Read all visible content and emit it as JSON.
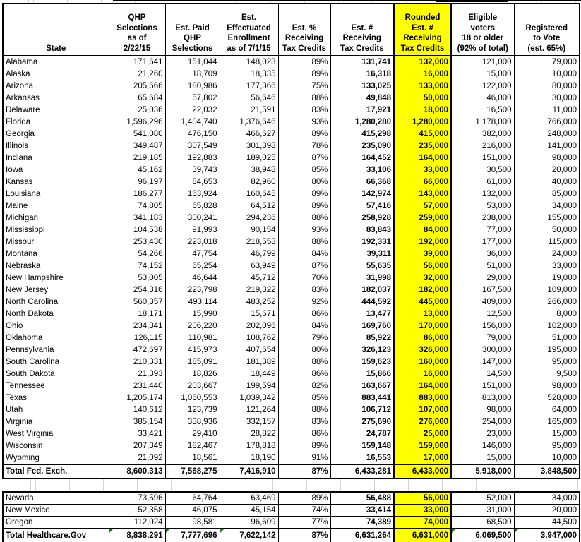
{
  "meta": {
    "highlight_color": "#ffff00",
    "flag_color": "#1e7e1e"
  },
  "table": {
    "columns": [
      {
        "key": "state",
        "label": "State"
      },
      {
        "key": "qhp-selections",
        "label": "QHP\nSelections\nas of\n2/22/15"
      },
      {
        "key": "est-paid-qhp",
        "label": "Est. Paid\nQHP\nSelections"
      },
      {
        "key": "est-effectuated",
        "label": "Est.\nEffectuated\nEnrollment\nas of 7/1/15"
      },
      {
        "key": "est-pct-tax-credits",
        "label": "Est. %\nReceiving\nTax Credits"
      },
      {
        "key": "est-num-tax-credits",
        "label": "Est. #\nReceiving\nTax Credits"
      },
      {
        "key": "rounded-est-tax-credits",
        "label": "Rounded\nEst. #\nReceiving\nTax Credits",
        "highlighted": true
      },
      {
        "key": "eligible-voters",
        "label": "Eligible\nvoters\n18 or older\n(92% of total)"
      },
      {
        "key": "registered-to-vote",
        "label": "Registered\nto Vote\n(est. 65%)"
      }
    ],
    "federal_rows": [
      [
        "Alabama",
        "171,641",
        "151,044",
        "148,023",
        "89%",
        "131,741",
        "132,000",
        "121,000",
        "79,000"
      ],
      [
        "Alaska",
        "21,260",
        "18,709",
        "18,335",
        "89%",
        "16,318",
        "16,000",
        "15,000",
        "10,000"
      ],
      [
        "Arizona",
        "205,666",
        "180,986",
        "177,366",
        "75%",
        "133,025",
        "133,000",
        "122,000",
        "80,000"
      ],
      [
        "Arkansas",
        "65,684",
        "57,802",
        "56,646",
        "88%",
        "49,848",
        "50,000",
        "46,000",
        "30,000"
      ],
      [
        "Delaware",
        "25,036",
        "22,032",
        "21,591",
        "83%",
        "17,921",
        "18,000",
        "16,500",
        "11,000"
      ],
      [
        "Florida",
        "1,596,296",
        "1,404,740",
        "1,376,646",
        "93%",
        "1,280,280",
        "1,280,000",
        "1,178,000",
        "766,000"
      ],
      [
        "Georgia",
        "541,080",
        "476,150",
        "466,627",
        "89%",
        "415,298",
        "415,000",
        "382,000",
        "248,000"
      ],
      [
        "Illinois",
        "349,487",
        "307,549",
        "301,398",
        "78%",
        "235,090",
        "235,000",
        "216,000",
        "141,000"
      ],
      [
        "Indiana",
        "219,185",
        "192,883",
        "189,025",
        "87%",
        "164,452",
        "164,000",
        "151,000",
        "98,000"
      ],
      [
        "Iowa",
        "45,162",
        "39,743",
        "38,948",
        "85%",
        "33,106",
        "33,000",
        "30,500",
        "20,000"
      ],
      [
        "Kansas",
        "96,197",
        "84,653",
        "82,960",
        "80%",
        "66,368",
        "66,000",
        "61,000",
        "40,000"
      ],
      [
        "Louisiana",
        "186,277",
        "163,924",
        "160,645",
        "89%",
        "142,974",
        "143,000",
        "132,000",
        "85,000"
      ],
      [
        "Maine",
        "74,805",
        "65,828",
        "64,512",
        "89%",
        "57,416",
        "57,000",
        "53,000",
        "34,000"
      ],
      [
        "Michigan",
        "341,183",
        "300,241",
        "294,236",
        "88%",
        "258,928",
        "259,000",
        "238,000",
        "155,000"
      ],
      [
        "Mississippi",
        "104,538",
        "91,993",
        "90,154",
        "93%",
        "83,843",
        "84,000",
        "77,000",
        "50,000"
      ],
      [
        "Missouri",
        "253,430",
        "223,018",
        "218,558",
        "88%",
        "192,331",
        "192,000",
        "177,000",
        "115,000"
      ],
      [
        "Montana",
        "54,266",
        "47,754",
        "46,799",
        "84%",
        "39,311",
        "39,000",
        "36,000",
        "24,000"
      ],
      [
        "Nebraska",
        "74,152",
        "65,254",
        "63,949",
        "87%",
        "55,635",
        "56,000",
        "51,000",
        "33,000"
      ],
      [
        "New Hampshire",
        "53,005",
        "46,644",
        "45,712",
        "70%",
        "31,998",
        "32,000",
        "29,000",
        "19,000"
      ],
      [
        "New Jersey",
        "254,316",
        "223,798",
        "219,322",
        "83%",
        "182,037",
        "182,000",
        "167,500",
        "109,000"
      ],
      [
        "North Carolina",
        "560,357",
        "493,114",
        "483,252",
        "92%",
        "444,592",
        "445,000",
        "409,000",
        "266,000"
      ],
      [
        "North Dakota",
        "18,171",
        "15,990",
        "15,671",
        "86%",
        "13,477",
        "13,000",
        "12,500",
        "8,000"
      ],
      [
        "Ohio",
        "234,341",
        "206,220",
        "202,096",
        "84%",
        "169,760",
        "170,000",
        "156,000",
        "102,000"
      ],
      [
        "Oklahoma",
        "126,115",
        "110,981",
        "108,762",
        "79%",
        "85,922",
        "86,000",
        "79,000",
        "51,000"
      ],
      [
        "Pennsylvania",
        "472,697",
        "415,973",
        "407,654",
        "80%",
        "326,123",
        "326,000",
        "300,000",
        "195,000"
      ],
      [
        "South Carolina",
        "210,331",
        "185,091",
        "181,389",
        "88%",
        "159,623",
        "160,000",
        "147,000",
        "95,000"
      ],
      [
        "South Dakota",
        "21,393",
        "18,826",
        "18,449",
        "86%",
        "15,866",
        "16,000",
        "14,500",
        "9,500"
      ],
      [
        "Tennessee",
        "231,440",
        "203,667",
        "199,594",
        "82%",
        "163,667",
        "164,000",
        "151,000",
        "98,000"
      ],
      [
        "Texas",
        "1,205,174",
        "1,060,553",
        "1,039,342",
        "85%",
        "883,441",
        "883,000",
        "813,000",
        "528,000"
      ],
      [
        "Utah",
        "140,612",
        "123,739",
        "121,264",
        "88%",
        "106,712",
        "107,000",
        "98,000",
        "64,000"
      ],
      [
        "Virginia",
        "385,154",
        "338,936",
        "332,157",
        "83%",
        "275,690",
        "276,000",
        "254,000",
        "165,000"
      ],
      [
        "West Virginia",
        "33,421",
        "29,410",
        "28,822",
        "86%",
        "24,787",
        "25,000",
        "23,000",
        "15,000"
      ],
      [
        "Wisconsin",
        "207,349",
        "182,467",
        "178,818",
        "89%",
        "159,148",
        "159,000",
        "146,000",
        "95,000"
      ],
      [
        "Wyoming",
        "21,092",
        "18,561",
        "18,190",
        "91%",
        "16,553",
        "17,000",
        "15,000",
        "10,000"
      ]
    ],
    "federal_total": [
      "Total Fed. Exch.",
      "8,600,313",
      "7,568,275",
      "7,416,910",
      "87%",
      "6,433,281",
      "6,433,000",
      "5,918,000",
      "3,848,500"
    ],
    "state_exchange_rows": [
      [
        "Nevada",
        "73,596",
        "64,764",
        "63,469",
        "89%",
        "56,488",
        "56,000",
        "52,000",
        "34,000"
      ],
      [
        "New Mexico",
        "52,358",
        "46,075",
        "45,154",
        "74%",
        "33,414",
        "33,000",
        "31,000",
        "20,000"
      ],
      [
        "Oregon",
        "112,024",
        "98,581",
        "96,609",
        "77%",
        "74,389",
        "74,000",
        "68,500",
        "44,500"
      ]
    ],
    "healthcare_gov_total": [
      "Total Healthcare.Gov",
      "8,838,291",
      "7,777,696",
      "7,622,142",
      "87%",
      "6,631,264",
      "6,631,000",
      "6,069,500",
      "3,947,000"
    ],
    "healthcare_gov_total_flagged_columns": [
      1,
      2,
      3,
      7,
      8
    ]
  }
}
